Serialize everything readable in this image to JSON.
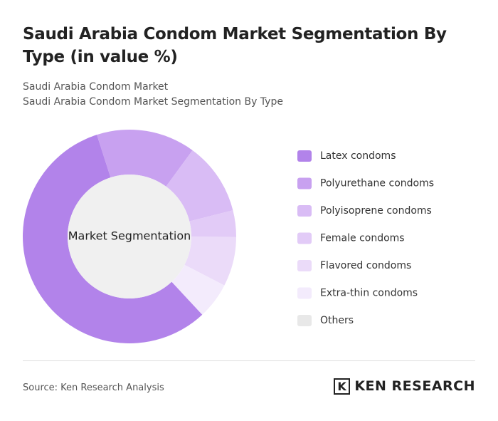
{
  "title": "Saudi Arabia Condom Market Segmentation By Type (in value %)",
  "subtitle": [
    "Saudi Arabia Condom Market",
    "Saudi Arabia Condom Market Segmentation By Type"
  ],
  "source": "Source: Ken Research Analysis",
  "logo": "KEN RESEARCH",
  "chart_data": {
    "type": "donut",
    "center_label": "Market Segmentation",
    "categories": [
      "Latex condoms",
      "Polyurethane condoms",
      "Polyisoprene condoms",
      "Female condoms",
      "Flavored condoms",
      "Extra-thin condoms",
      "Others"
    ],
    "values": [
      57,
      15,
      11,
      4,
      7.5,
      5.5,
      0
    ],
    "colors": [
      "#b283ea",
      "#c8a1f0",
      "#d9bcf5",
      "#e2cbf7",
      "#ebdbf9",
      "#f3ebfc",
      "#e8e8e8"
    ],
    "legend": "right"
  }
}
